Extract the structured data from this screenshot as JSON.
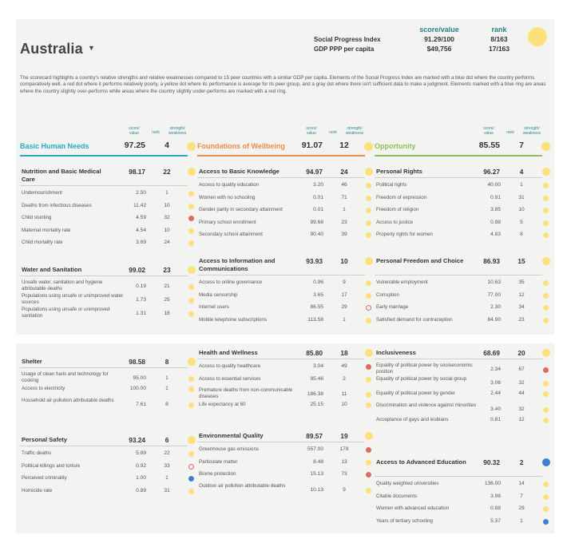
{
  "header": {
    "country": "Australia",
    "caret": "▼",
    "col_score": "score/value",
    "col_rank": "rank",
    "rows": [
      {
        "label": "Social Progress Index",
        "value": "91.29/100",
        "rank": "8/163"
      },
      {
        "label": "GDP PPP per capita",
        "value": "$49,756",
        "rank": "17/163"
      }
    ],
    "dot_color": "#fce17a"
  },
  "description": "The scorecard highlights a country's relative strengths and relative weaknesses compared to 15 peer countries with a similar GDP per capita. Elements of the Social Progress Index are marked with a blue dot where the country performs comparatively well, a red dot where it performs relatively poorly, a yellow dot where its performance is average for its peer group, and a gray dot where there isn't sufficient data to make a judgment. Elements marked with a blue ring are areas where the country slightly over-performs while areas where the country slightly under-performs are marked with a red ring.",
  "column_labels": {
    "score": "score/\nvalue",
    "rank": "rank",
    "sw": "strength/\nweakness"
  },
  "colors": {
    "yellow": "#fce17a",
    "red": "#e16a5f",
    "blue": "#3a7fd0",
    "bhn": "#2ba7c9",
    "fow": "#ef8a4b",
    "opp": "#8fbf56"
  },
  "dimensions": [
    {
      "name": "Basic Human Needs",
      "score": "97.25",
      "rank": "4",
      "dot": "yellow",
      "color": "#2ba7c9"
    },
    {
      "name": "Foundations of Wellbeing",
      "score": "91.07",
      "rank": "12",
      "dot": "yellow",
      "color": "#ef8a4b"
    },
    {
      "name": "Opportunity",
      "score": "85.55",
      "rank": "7",
      "dot": "yellow",
      "color": "#8fbf56"
    }
  ],
  "components": [
    {
      "name": "Nutrition and Basic Medical Care",
      "score": "98.17",
      "rank": "22",
      "dot": "yellow",
      "indicators": [
        {
          "name": "Undernourishment",
          "value": "2.50",
          "rank": "1",
          "dot": "yellow"
        },
        {
          "name": "Deaths from infectious diseases",
          "value": "11.42",
          "rank": "10",
          "dot": "yellow"
        },
        {
          "name": "Child stunting",
          "value": "4.59",
          "rank": "32",
          "dot": "red"
        },
        {
          "name": "Maternal mortality rate",
          "value": "4.54",
          "rank": "10",
          "dot": "yellow"
        },
        {
          "name": "Child mortality rate",
          "value": "3.69",
          "rank": "24",
          "dot": "yellow"
        }
      ]
    },
    {
      "name": "Water and Sanitation",
      "score": "99.02",
      "rank": "23",
      "dot": "yellow",
      "indicators": [
        {
          "name": "Unsafe water, sanitation and hygiene attributable deaths",
          "value": "0.19",
          "rank": "21",
          "dot": "yellow"
        },
        {
          "name": "Populations using unsafe or unimproved water sources",
          "value": "1.73",
          "rank": "25",
          "dot": "yellow"
        },
        {
          "name": "Populations using unsafe or unimproved sanitation",
          "value": "1.31",
          "rank": "18",
          "dot": "yellow"
        }
      ]
    },
    {
      "name": "Access to Basic Knowledge",
      "score": "94.97",
      "rank": "24",
      "dot": "yellow",
      "indicators": [
        {
          "name": "Access to quality education",
          "value": "3.20",
          "rank": "46",
          "dot": "yellow"
        },
        {
          "name": "Women with no schooling",
          "value": "0.01",
          "rank": "71",
          "dot": "yellow"
        },
        {
          "name": "Gender parity in secondary attainment",
          "value": "0.01",
          "rank": "1",
          "dot": "yellow"
        },
        {
          "name": "Primary school enrollment",
          "value": "99.68",
          "rank": "23",
          "dot": "yellow"
        },
        {
          "name": "Secondary school attainment",
          "value": "90.40",
          "rank": "39",
          "dot": "yellow"
        }
      ]
    },
    {
      "name": "Access to Information and Communications",
      "score": "93.93",
      "rank": "10",
      "dot": "yellow",
      "indicators": [
        {
          "name": "Access to online governance",
          "value": "0.96",
          "rank": "9",
          "dot": "yellow"
        },
        {
          "name": "Media censorship",
          "value": "3.65",
          "rank": "17",
          "dot": "yellow"
        },
        {
          "name": "Internet users",
          "value": "86.55",
          "rank": "29",
          "dot": "red-ring"
        },
        {
          "name": "Mobile telephone subscriptions",
          "value": "113.58",
          "rank": "1",
          "dot": "yellow"
        }
      ]
    },
    {
      "name": "Personal Rights",
      "score": "96.27",
      "rank": "4",
      "dot": "yellow",
      "indicators": [
        {
          "name": "Political rights",
          "value": "40.00",
          "rank": "1",
          "dot": "yellow"
        },
        {
          "name": "Freedom of expression",
          "value": "0.91",
          "rank": "31",
          "dot": "yellow"
        },
        {
          "name": "Freedom of religion",
          "value": "3.85",
          "rank": "10",
          "dot": "yellow"
        },
        {
          "name": "Access to justice",
          "value": "0.98",
          "rank": "5",
          "dot": "yellow"
        },
        {
          "name": "Property rights for women",
          "value": "4.83",
          "rank": "8",
          "dot": "yellow"
        }
      ]
    },
    {
      "name": "Personal Freedom and Choice",
      "score": "86.93",
      "rank": "15",
      "dot": "yellow",
      "indicators": [
        {
          "name": "Vulnerable employment",
          "value": "10.63",
          "rank": "35",
          "dot": "yellow"
        },
        {
          "name": "Corruption",
          "value": "77.00",
          "rank": "12",
          "dot": "yellow"
        },
        {
          "name": "Early marriage",
          "value": "2.30",
          "rank": "34",
          "dot": "yellow"
        },
        {
          "name": "Satisfied demand for contraception",
          "value": "84.90",
          "rank": "23",
          "dot": "yellow"
        }
      ]
    },
    {
      "name": "Shelter",
      "score": "98.58",
      "rank": "8",
      "dot": "yellow",
      "indicators": [
        {
          "name": "Usage of clean fuels and technology for cooking",
          "value": "95.00",
          "rank": "1",
          "dot": "yellow"
        },
        {
          "name": "Access to electricity",
          "value": "100.00",
          "rank": "1",
          "dot": "yellow"
        },
        {
          "name": "Household air pollution attributable deaths",
          "value": "7.61",
          "rank": "8",
          "dot": "yellow"
        }
      ]
    },
    {
      "name": "Personal Safety",
      "score": "93.24",
      "rank": "6",
      "dot": "yellow",
      "indicators": [
        {
          "name": "Traffic deaths",
          "value": "5.89",
          "rank": "22",
          "dot": "yellow"
        },
        {
          "name": "Political killings and torture",
          "value": "0.92",
          "rank": "33",
          "dot": "red-ring"
        },
        {
          "name": "Perceived criminality",
          "value": "1.00",
          "rank": "1",
          "dot": "blue"
        },
        {
          "name": "Homicide rate",
          "value": "0.89",
          "rank": "31",
          "dot": "yellow"
        }
      ]
    },
    {
      "name": "Health and Wellness",
      "score": "85.80",
      "rank": "18",
      "dot": "yellow",
      "indicators": [
        {
          "name": "Access to quality healthcare",
          "value": "3.04",
          "rank": "49",
          "dot": "red"
        },
        {
          "name": "Access to essential services",
          "value": "95.46",
          "rank": "2",
          "dot": "yellow"
        },
        {
          "name": "Premature deaths from non-communicable diseases",
          "value": "186.38",
          "rank": "11",
          "dot": "yellow"
        },
        {
          "name": "Life expectancy at 60",
          "value": "25.15",
          "rank": "10",
          "dot": "yellow"
        }
      ]
    },
    {
      "name": "Environmental Quality",
      "score": "89.57",
      "rank": "19",
      "dot": "yellow",
      "indicators": [
        {
          "name": "Greenhouse gas emissions",
          "value": "557.00",
          "rank": "178",
          "dot": "red"
        },
        {
          "name": "Particulate matter",
          "value": "8.48",
          "rank": "13",
          "dot": "yellow"
        },
        {
          "name": "Biome protection",
          "value": "15.13",
          "rank": "73",
          "dot": "red"
        },
        {
          "name": "Outdoor air pollution attributable deaths",
          "value": "10.13",
          "rank": "9",
          "dot": "yellow"
        }
      ]
    },
    {
      "name": "Inclusiveness",
      "score": "68.69",
      "rank": "20",
      "dot": "yellow",
      "indicators": [
        {
          "name": "Equality of political power by socioeconomic position",
          "value": "2.34",
          "rank": "67",
          "dot": "red"
        },
        {
          "name": "Equality of political power by social group",
          "value": "3.06",
          "rank": "32",
          "dot": "yellow"
        },
        {
          "name": "Equality of political power by gender",
          "value": "2.44",
          "rank": "44",
          "dot": "yellow"
        },
        {
          "name": "Discrimination and violence against minorities",
          "value": "3.40",
          "rank": "32",
          "dot": "yellow"
        },
        {
          "name": "Acceptance of gays and lesbians",
          "value": "0.81",
          "rank": "12",
          "dot": "yellow"
        }
      ]
    },
    {
      "name": "Access to Advanced Education",
      "score": "90.32",
      "rank": "2",
      "dot": "blue",
      "indicators": [
        {
          "name": "Quality weighted universities",
          "value": "136.00",
          "rank": "14",
          "dot": "yellow"
        },
        {
          "name": "Citable documents",
          "value": "3.96",
          "rank": "7",
          "dot": "yellow"
        },
        {
          "name": "Women with advanced education",
          "value": "0.88",
          "rank": "29",
          "dot": "yellow"
        },
        {
          "name": "Years of tertiary schooling",
          "value": "5.37",
          "rank": "1",
          "dot": "blue"
        }
      ]
    }
  ]
}
